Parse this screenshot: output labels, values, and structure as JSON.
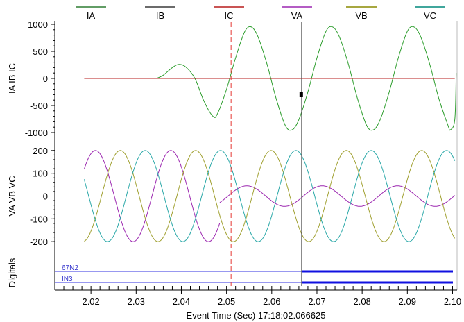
{
  "chart_data": {
    "type": "line",
    "xlabel": "Event Time (Sec)  17:18:02.066625",
    "x_range": [
      2.012,
      2.101
    ],
    "x_ticks": [
      2.02,
      2.03,
      2.04,
      2.05,
      2.06,
      2.07,
      2.08,
      2.09,
      2.1
    ],
    "x_tick_labels": [
      "2.02",
      "2.03",
      "2.04",
      "2.05",
      "2.06",
      "2.07",
      "2.08",
      "2.09",
      "2.10"
    ],
    "legend": [
      {
        "name": "IA",
        "color": "#2e7d32"
      },
      {
        "name": "IB",
        "color": "#3a3a3a"
      },
      {
        "name": "IC",
        "color": "#b71c1c"
      },
      {
        "name": "VA",
        "color": "#9c27b0"
      },
      {
        "name": "VB",
        "color": "#8a8a00"
      },
      {
        "name": "VC",
        "color": "#00897b"
      }
    ],
    "legend_placement": "top",
    "cursor_dashed_x": 2.051,
    "cursor_solid_x": 2.0666,
    "panels": [
      {
        "ylabel": "IA IB IC",
        "ylim": [
          -1000,
          1000
        ],
        "y_ticks": [
          1000,
          500,
          0,
          -500,
          -1000
        ],
        "y_tick_labels": [
          "1000",
          "500",
          "0",
          "-500",
          "-1000"
        ],
        "series": [
          {
            "name": "IA",
            "color": "#2e9e2e",
            "points": [
              [
                2.0345,
                0
              ],
              [
                2.036,
                60
              ],
              [
                2.038,
                200
              ],
              [
                2.0395,
                260
              ],
              [
                2.041,
                210
              ],
              [
                2.043,
                0
              ],
              [
                2.045,
                -420
              ],
              [
                2.047,
                -700
              ],
              [
                2.048,
                -650
              ],
              [
                2.05,
                -200
              ],
              [
                2.052,
                380
              ],
              [
                2.054,
                860
              ],
              [
                2.0555,
                950
              ],
              [
                2.057,
                760
              ],
              [
                2.059,
                250
              ],
              [
                2.061,
                -380
              ],
              [
                2.063,
                -870
              ],
              [
                2.0645,
                -950
              ],
              [
                2.066,
                -760
              ],
              [
                2.068,
                -250
              ],
              [
                2.07,
                380
              ],
              [
                2.072,
                870
              ],
              [
                2.0735,
                950
              ],
              [
                2.075,
                760
              ],
              [
                2.077,
                250
              ],
              [
                2.079,
                -380
              ],
              [
                2.081,
                -870
              ],
              [
                2.0825,
                -950
              ],
              [
                2.084,
                -760
              ],
              [
                2.086,
                -250
              ],
              [
                2.088,
                380
              ],
              [
                2.09,
                870
              ],
              [
                2.0915,
                950
              ],
              [
                2.093,
                760
              ],
              [
                2.095,
                250
              ],
              [
                2.097,
                -380
              ],
              [
                2.099,
                -870
              ],
              [
                2.0995,
                -950
              ],
              [
                2.1005,
                -760
              ],
              [
                2.1008,
                100
              ]
            ]
          },
          {
            "name": "IC",
            "color": "#b71c1c",
            "points": [
              [
                2.0185,
                0
              ],
              [
                2.1005,
                0
              ]
            ]
          }
        ]
      },
      {
        "ylabel": "VA VB VC",
        "ylim": [
          -230,
          230
        ],
        "y_ticks": [
          200,
          100,
          0,
          -100,
          -200
        ],
        "y_tick_labels": [
          "200",
          "100",
          "0",
          "-100",
          "-200"
        ],
        "series": [
          {
            "name": "VA",
            "color": "#9c27b0",
            "amplitude": 200,
            "period": 0.01667,
            "peak_x": 2.021,
            "t0": 2.0185,
            "t1": 2.0485
          },
          {
            "name": "VA",
            "color": "#9c27b0",
            "amplitude": 45,
            "period": 0.01667,
            "peak_x": 2.0545,
            "t0": 2.0485,
            "t1": 2.1005
          },
          {
            "name": "VB",
            "color": "#a0a030",
            "amplitude": 200,
            "period": 0.01667,
            "peak_x": 2.0265,
            "t0": 2.0185,
            "t1": 2.1005
          },
          {
            "name": "VC",
            "color": "#2aa8a8",
            "amplitude": 200,
            "period": 0.01667,
            "peak_x": 2.032,
            "t0": 2.0185,
            "t1": 2.1005
          }
        ]
      }
    ],
    "digitals": {
      "ylabel": "Digitals",
      "channels": [
        {
          "name": "67N2",
          "on_from": 2.0666
        },
        {
          "name": "IN3",
          "on_from": 2.0666
        }
      ]
    }
  }
}
